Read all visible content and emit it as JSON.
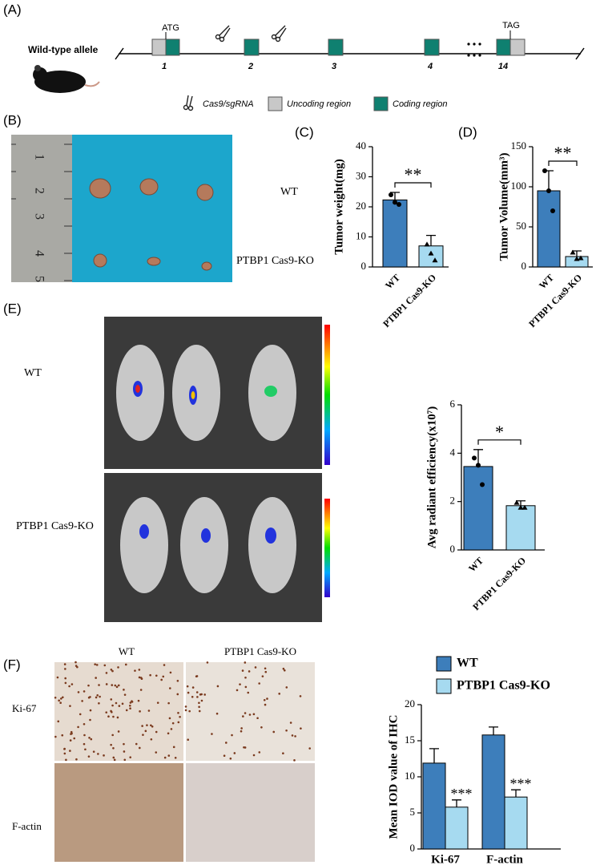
{
  "panel_labels": {
    "A": "(A)",
    "B": "(B)",
    "C": "(C)",
    "D": "(D)",
    "E": "(E)",
    "F": "(F)"
  },
  "gene_diagram": {
    "allele_label": "Wild-type allele",
    "start_codon": "ATG",
    "stop_codon": "TAG",
    "exons": [
      "1",
      "2",
      "3",
      "4",
      "14"
    ],
    "legend": [
      "Cas9/sgRNA",
      "Uncoding region",
      "Coding region"
    ]
  },
  "tumor_photo": {
    "ruler_labels": [
      "1",
      "2",
      "3",
      "4",
      "5"
    ],
    "groups": [
      "WT",
      "PTBP1 Cas9-KO"
    ]
  },
  "imaging": {
    "groups": [
      "WT",
      "PTBP1 Cas9-KO"
    ]
  },
  "ihc": {
    "columns": [
      "WT",
      "PTBP1 Cas9-KO"
    ],
    "rows": [
      "Ki-67",
      "F-actin"
    ]
  },
  "chart_data": [
    {
      "type": "bar",
      "ylabel": "Tumor weight(mg)",
      "categories": [
        "WT",
        "PTBP1 Cas9-KO"
      ],
      "values": [
        22.3,
        7.0
      ],
      "errors": [
        2.5,
        3.5
      ],
      "points": [
        [
          24,
          21.5,
          20.8
        ],
        [
          7.5,
          4.5,
          2.2
        ]
      ],
      "colors": [
        "#3d7ebb",
        "#a6daf0"
      ],
      "significance": "**",
      "ylim": [
        0,
        40
      ],
      "yticks": [
        0,
        10,
        20,
        30,
        40
      ]
    },
    {
      "type": "bar",
      "ylabel": "Tumor Volume(mm³)",
      "categories": [
        "WT",
        "PTBP1 Cas9-KO"
      ],
      "values": [
        95,
        13
      ],
      "errors": [
        25,
        7
      ],
      "points": [
        [
          120,
          95,
          70
        ],
        [
          18,
          10,
          11
        ]
      ],
      "colors": [
        "#3d7ebb",
        "#a6daf0"
      ],
      "significance": "**",
      "ylim": [
        0,
        150
      ],
      "yticks": [
        0,
        50,
        100,
        150
      ]
    },
    {
      "type": "bar",
      "ylabel": "Avg radiant efficiency(x10⁷)",
      "categories": [
        "WT",
        "PTBP1 Cas9-KO"
      ],
      "values": [
        3.45,
        1.83
      ],
      "errors": [
        0.7,
        0.2
      ],
      "points": [
        [
          3.8,
          3.5,
          2.7
        ],
        [
          1.95,
          1.75,
          1.75
        ]
      ],
      "colors": [
        "#3d7ebb",
        "#a6daf0"
      ],
      "significance": "*",
      "ylim": [
        0,
        6
      ],
      "yticks": [
        0,
        2,
        4,
        6
      ]
    },
    {
      "type": "bar",
      "ylabel": "Mean IOD value of IHC",
      "categories": [
        "Ki-67",
        "F-actin"
      ],
      "series": [
        {
          "name": "WT",
          "color": "#3d7ebb",
          "values": [
            11.9,
            15.8
          ],
          "errors": [
            2.0,
            1.1
          ]
        },
        {
          "name": "PTBP1 Cas9-KO",
          "color": "#a6daf0",
          "values": [
            5.8,
            7.2
          ],
          "errors": [
            1.0,
            1.0
          ],
          "annotations": [
            "***",
            "***"
          ]
        }
      ],
      "ylim": [
        0,
        20
      ],
      "yticks": [
        0,
        5,
        10,
        15,
        20
      ]
    }
  ]
}
